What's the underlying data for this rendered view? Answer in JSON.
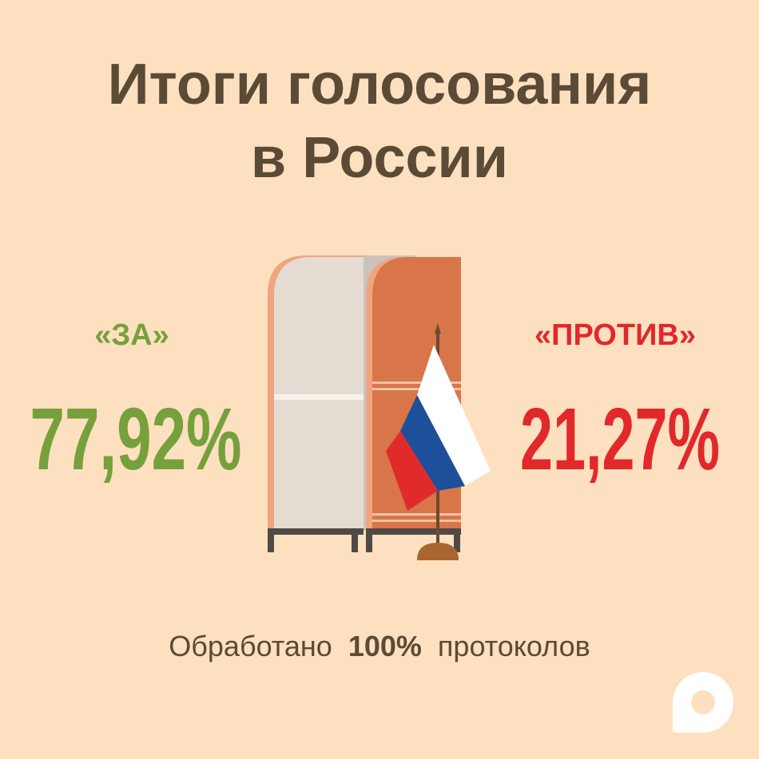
{
  "header": {
    "title": [
      "Итоги голосования",
      "в России"
    ]
  },
  "results": {
    "for": {
      "label": "«ЗА»",
      "value": "77,92%"
    },
    "against": {
      "label": "«ПРОТИВ»",
      "value": "21,27%"
    }
  },
  "footer": {
    "prefix": "Обработано",
    "highlight": "100%",
    "suffix": "протоколов"
  }
}
